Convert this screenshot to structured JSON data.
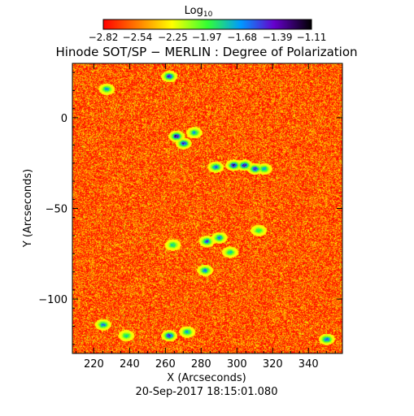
{
  "chart_data": {
    "type": "heatmap",
    "title": "Hinode SOT/SP − MERLIN : Degree of Polarization",
    "xlabel": "X (Arcseconds)",
    "ylabel": "Y (Arcseconds)",
    "timestamp": "20-Sep-2017 18:15:01.080",
    "xlim": [
      208,
      359
    ],
    "ylim": [
      -130,
      30
    ],
    "x_ticks": [
      220,
      240,
      260,
      280,
      300,
      320,
      340
    ],
    "y_ticks": [
      0,
      -50,
      -100
    ],
    "colorbar": {
      "label": "Log",
      "label_subscript": "10",
      "scale": "log10",
      "range": [
        -2.82,
        -1.11
      ],
      "tick_values": [
        -2.82,
        -2.54,
        -2.25,
        -1.97,
        -1.68,
        -1.39,
        -1.11
      ],
      "tick_labels": [
        "−2.82",
        "−2.54",
        "−2.25",
        "−1.97",
        "−1.68",
        "−1.39",
        "−1.11"
      ],
      "colors": [
        "#ff0000",
        "#ff8800",
        "#ffff00",
        "#33ff33",
        "#0099ff",
        "#6600cc",
        "#000000"
      ]
    },
    "background_value_range": [
      -2.82,
      -2.3
    ],
    "features": [
      {
        "x": 266,
        "y": -10,
        "value": -1.11
      },
      {
        "x": 270,
        "y": -14,
        "value": -1.25
      },
      {
        "x": 276,
        "y": -8,
        "value": -1.6
      },
      {
        "x": 288,
        "y": -27,
        "value": -1.4
      },
      {
        "x": 298,
        "y": -26,
        "value": -1.15
      },
      {
        "x": 304,
        "y": -26,
        "value": -1.15
      },
      {
        "x": 310,
        "y": -28,
        "value": -1.3
      },
      {
        "x": 315,
        "y": -28,
        "value": -1.6
      },
      {
        "x": 262,
        "y": 23,
        "value": -1.25
      },
      {
        "x": 227,
        "y": 16,
        "value": -1.6
      },
      {
        "x": 262,
        "y": -120,
        "value": -1.2
      },
      {
        "x": 272,
        "y": -118,
        "value": -1.6
      },
      {
        "x": 225,
        "y": -114,
        "value": -1.5
      },
      {
        "x": 238,
        "y": -120,
        "value": -1.7
      },
      {
        "x": 283,
        "y": -68,
        "value": -1.4
      },
      {
        "x": 290,
        "y": -66,
        "value": -1.5
      },
      {
        "x": 264,
        "y": -70,
        "value": -1.7
      },
      {
        "x": 296,
        "y": -74,
        "value": -1.7
      },
      {
        "x": 282,
        "y": -84,
        "value": -1.5
      },
      {
        "x": 350,
        "y": -122,
        "value": -1.4
      },
      {
        "x": 312,
        "y": -62,
        "value": -1.8
      }
    ]
  }
}
